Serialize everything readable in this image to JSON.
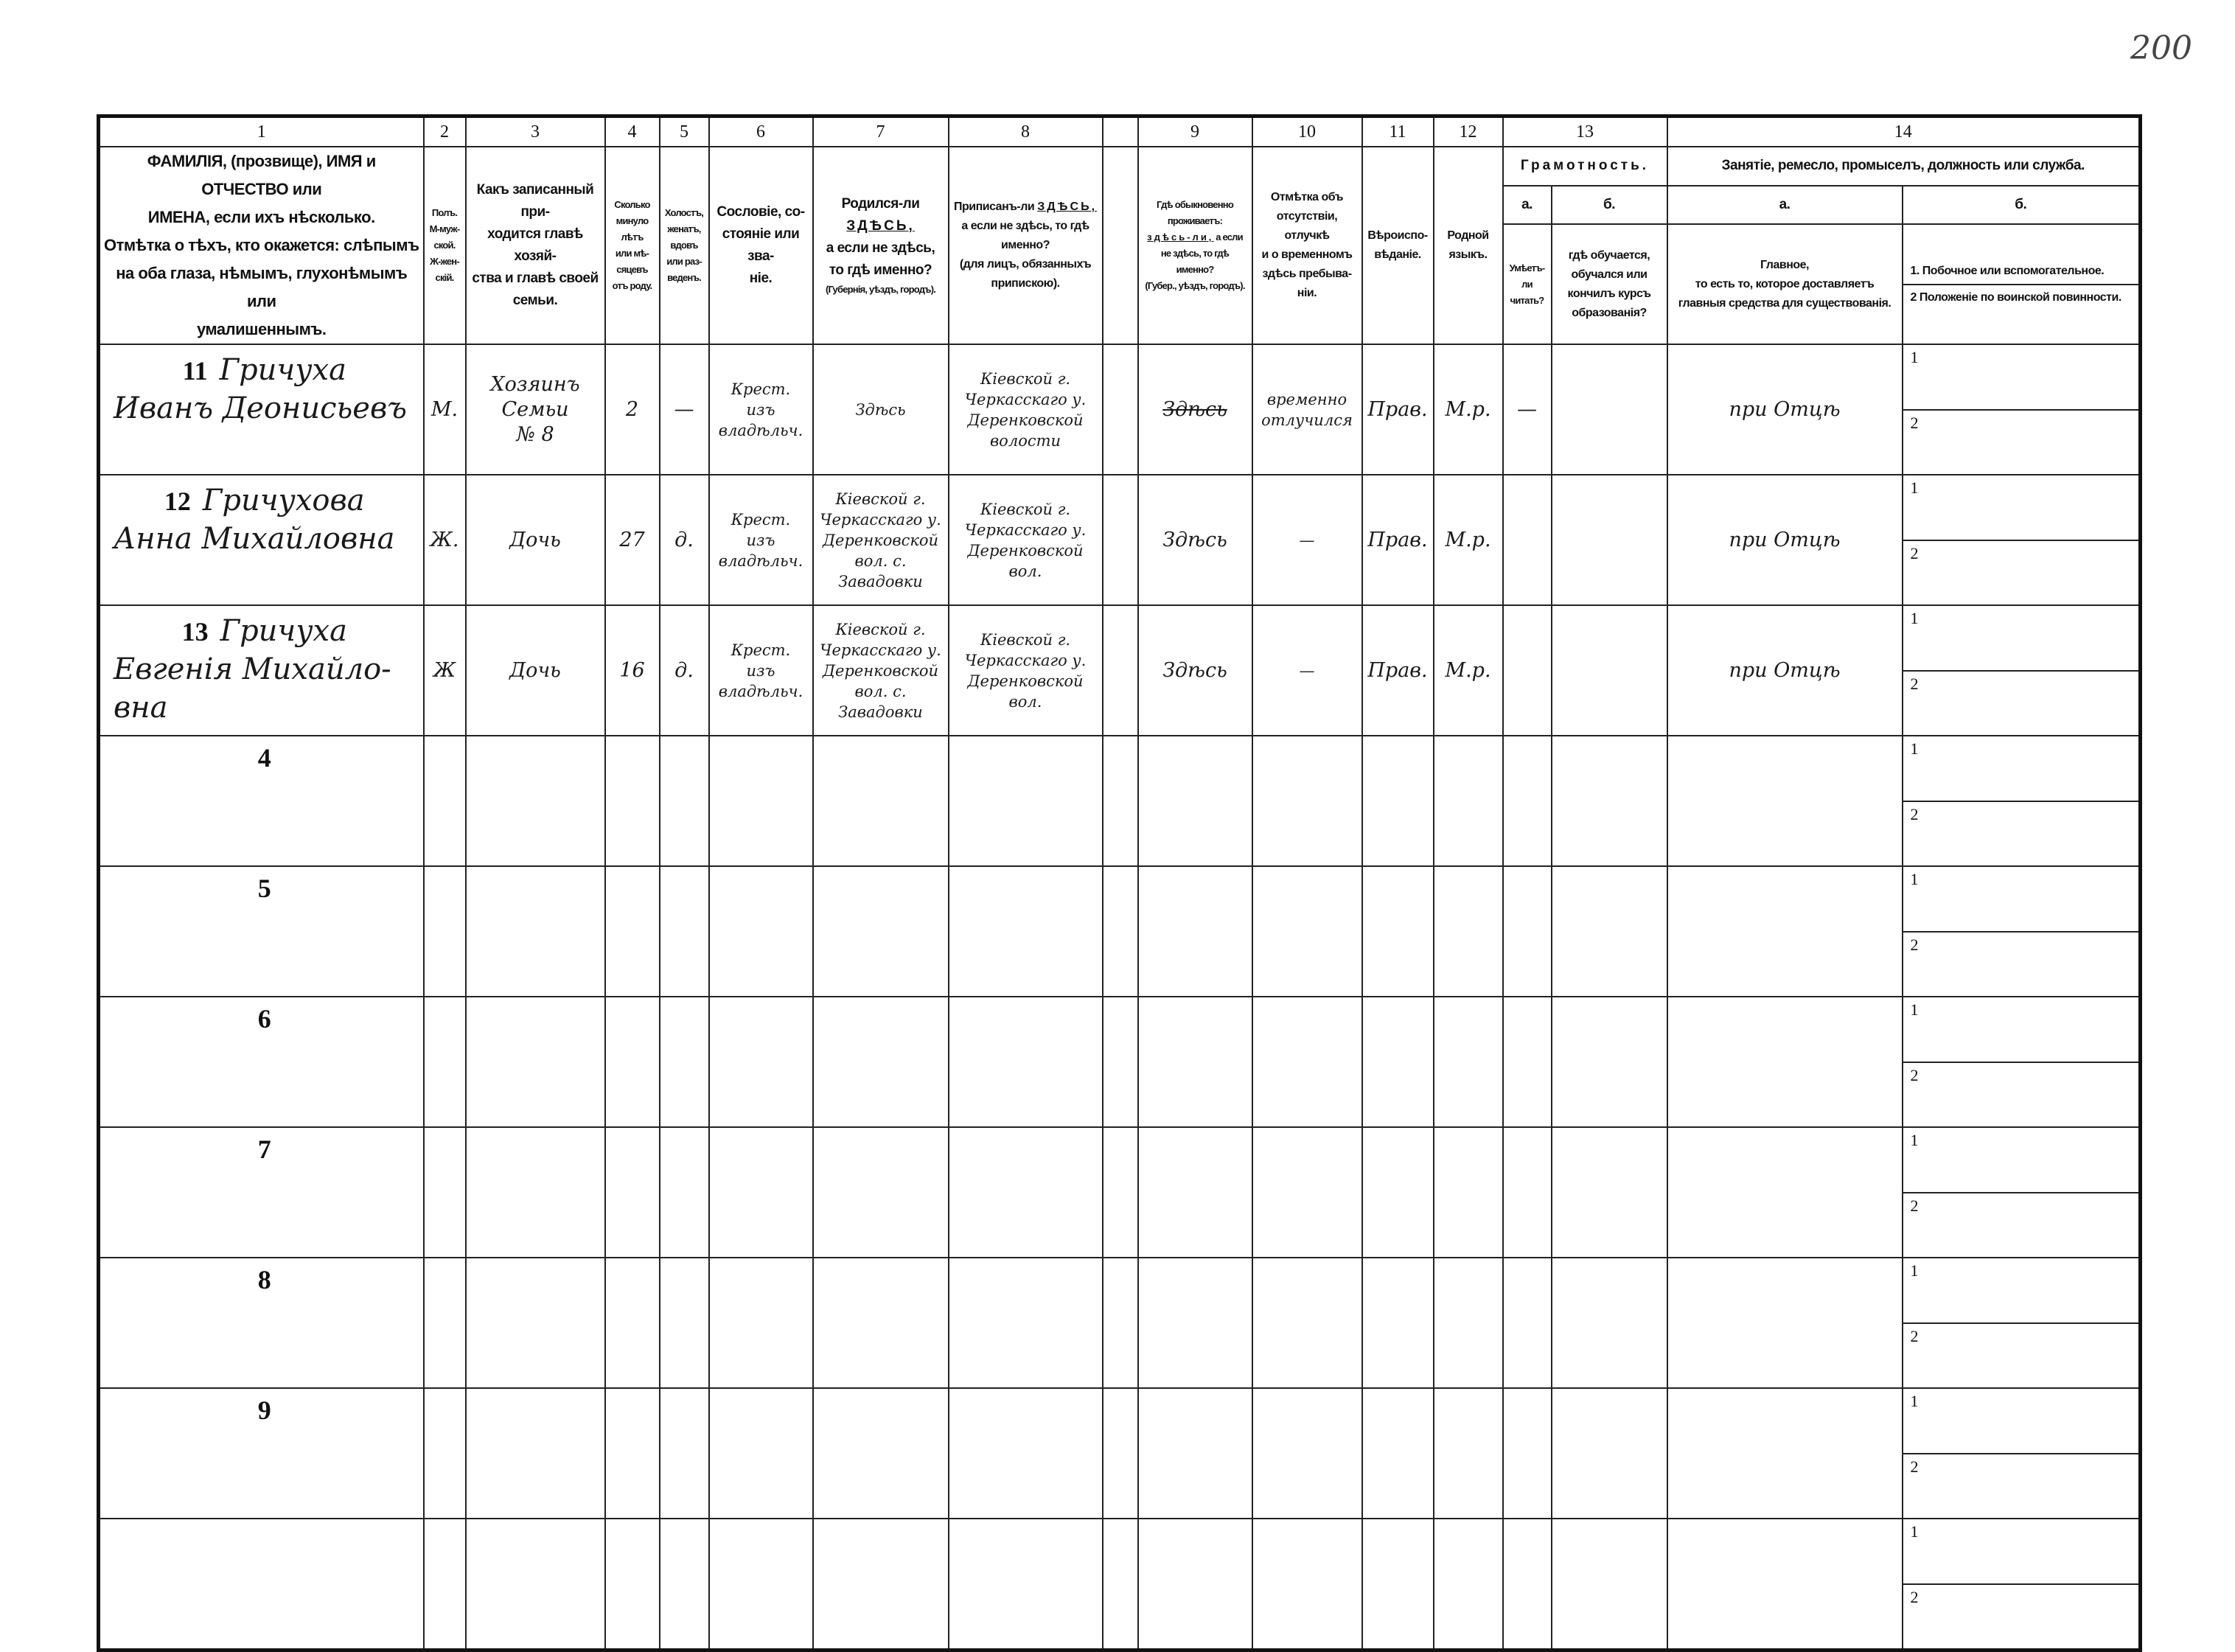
{
  "page_number": "200",
  "column_numbers": [
    "1",
    "2",
    "3",
    "4",
    "5",
    "6",
    "7",
    "8",
    "",
    "9",
    "10",
    "11",
    "12",
    "13",
    "14"
  ],
  "headers": {
    "c1": [
      "ФАМИЛIЯ, (прозвище), ИМЯ и ОТЧЕСТВО или",
      "ИМЕНА, если ихъ нѣсколько.",
      "Отмѣтка о тѣхъ, кто окажется: слѣпымъ",
      "на оба глаза, нѣмымъ, глухонѣмымъ или",
      "умалишеннымъ."
    ],
    "c2": [
      "Полъ.",
      "М-муж-ской.",
      "Ж-жен-скiй."
    ],
    "c3": [
      "Какъ записанный при-",
      "ходится главѣ хозяй-",
      "ства и главѣ своей",
      "семьи."
    ],
    "c4": [
      "Сколько",
      "минуло",
      "лѣтъ",
      "или мѣ-",
      "сяцевъ",
      "отъ роду."
    ],
    "c5": [
      "Холостъ,",
      "женатъ,",
      "вдовъ",
      "или раз-",
      "веденъ."
    ],
    "c6": [
      "Сословiе, со-",
      "стоянiе или зва-",
      "нiе."
    ],
    "c7": {
      "pre": "Родился-ли",
      "here": "ЗДѢСЬ,",
      "lines": [
        "а если не здѣсь,",
        "то гдѣ именно?"
      ],
      "note": "(Губернiя, уѣздъ, городъ)."
    },
    "c8": {
      "pre": "Приписанъ-ли",
      "here": "ЗДѢСЬ,",
      "lines": [
        "а если не здѣсь, то гдѣ",
        "именно?",
        "(для лицъ, обязанныхъ",
        "припискою)."
      ]
    },
    "c9": {
      "lines": [
        "Гдѣ обыкновенно",
        "проживаетъ:"
      ],
      "here": "здѣсь-ли,",
      "post": "а если",
      "lines2": [
        "не здѣсь, то гдѣ",
        "именно?"
      ],
      "note": "(Губер., уѣздъ, городъ)."
    },
    "c10": [
      "Отмѣтка объ",
      "отсутствiи, отлучкѣ",
      "и о временномъ",
      "здѣсь пребыва-",
      "нiи."
    ],
    "c11": [
      "Вѣроиспо-",
      "вѣданiе."
    ],
    "c12": [
      "Родной",
      "языкъ."
    ],
    "c13": {
      "title": "Грамотность.",
      "a": "а.",
      "b": "б.",
      "a_text": [
        "Умѣетъ-",
        "ли",
        "читать?"
      ],
      "b_text": [
        "гдѣ обучается,",
        "обучался или",
        "кончилъ курсъ",
        "образованiя?"
      ]
    },
    "c14": {
      "title": "Занятiе, ремесло, промыселъ, должность или служба.",
      "a": "а.",
      "b": "б.",
      "a_text": [
        "Главное,",
        "то есть то, которое доставляетъ",
        "главныя средства для существованiя."
      ],
      "b1": "1. Побочное или вспомогательное.",
      "b2": "2 Положенiе по воинской повинности."
    }
  },
  "sub_labels": [
    "1",
    "2"
  ],
  "rows": [
    {
      "num": "11",
      "name": [
        "Гричуха",
        "Иванъ Деонисьевъ"
      ],
      "sex": "М.",
      "relation": [
        "Хозяинъ",
        "Семьи",
        "№ 8"
      ],
      "age": "2",
      "marital": "—",
      "estate": [
        "Крест.",
        "изъ",
        "владѣльч."
      ],
      "born": [
        "Здѣсь"
      ],
      "registered": [
        "Кiевской г.",
        "Черкасскаго у.",
        "Деренковской",
        "волости"
      ],
      "residence": "Здѣсь",
      "residence_crossed": true,
      "absence": [
        "временно",
        "отлучился"
      ],
      "religion": "Прав.",
      "language": "М.р.",
      "literate": "—",
      "education": "",
      "occupation": "при Отцѣ"
    },
    {
      "num": "12",
      "name": [
        "Гричухова",
        "Анна Михайловна"
      ],
      "sex": "Ж.",
      "relation": [
        "Дочь"
      ],
      "age": "27",
      "marital": "д.",
      "estate": [
        "Крест.",
        "изъ",
        "владѣльч."
      ],
      "born": [
        "Кiевской г.",
        "Черкасскаго у.",
        "Деренковской",
        "вол. с. Завадовки"
      ],
      "registered": [
        "Кiевской г.",
        "Черкасскаго у.",
        "Деренковской",
        "вол."
      ],
      "residence": "Здѣсь",
      "residence_crossed": false,
      "absence": [
        "—"
      ],
      "religion": "Прав.",
      "language": "М.р.",
      "literate": "",
      "education": "",
      "occupation": "при Отцѣ"
    },
    {
      "num": "13",
      "name": [
        "Гричуха",
        "Евгенiя Михайло-",
        "вна"
      ],
      "sex": "Ж",
      "relation": [
        "Дочь"
      ],
      "age": "16",
      "marital": "д.",
      "estate": [
        "Крест.",
        "изъ",
        "владѣльч."
      ],
      "born": [
        "Кiевской г.",
        "Черкасскаго у.",
        "Деренковской",
        "вол. с. Завадовки"
      ],
      "registered": [
        "Кiевской г.",
        "Черкасскаго у.",
        "Деренковской",
        "вол."
      ],
      "residence": "Здѣсь",
      "residence_crossed": false,
      "absence": [
        "—"
      ],
      "religion": "Прав.",
      "language": "М.р.",
      "literate": "",
      "education": "",
      "occupation": "при Отцѣ"
    },
    {
      "num": "4"
    },
    {
      "num": "5"
    },
    {
      "num": "6"
    },
    {
      "num": "7"
    },
    {
      "num": "8"
    },
    {
      "num": "9"
    },
    {
      "num": ""
    }
  ]
}
